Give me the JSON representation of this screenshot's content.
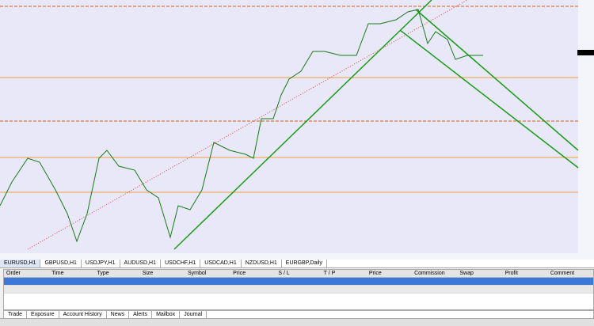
{
  "chart_tabs": [
    "EURUSD,H1",
    "GBPUSD,H1",
    "USDJPY,H1",
    "AUDUSD,H1",
    "USDCHF,H1",
    "USDCAD,H1",
    "NZDUSD,H1",
    "EURGBP,Daily"
  ],
  "columns": [
    "Order",
    "Time",
    "Type",
    "Size",
    "Symbol",
    "Price",
    "S / L",
    "T / P",
    "Price",
    "Commission",
    "Swap",
    "Profit",
    "Comment"
  ],
  "terminal_tabs": [
    "Trade",
    "Exposure",
    "Account History",
    "News",
    "Alerts",
    "Mailbox",
    "Journal"
  ]
}
